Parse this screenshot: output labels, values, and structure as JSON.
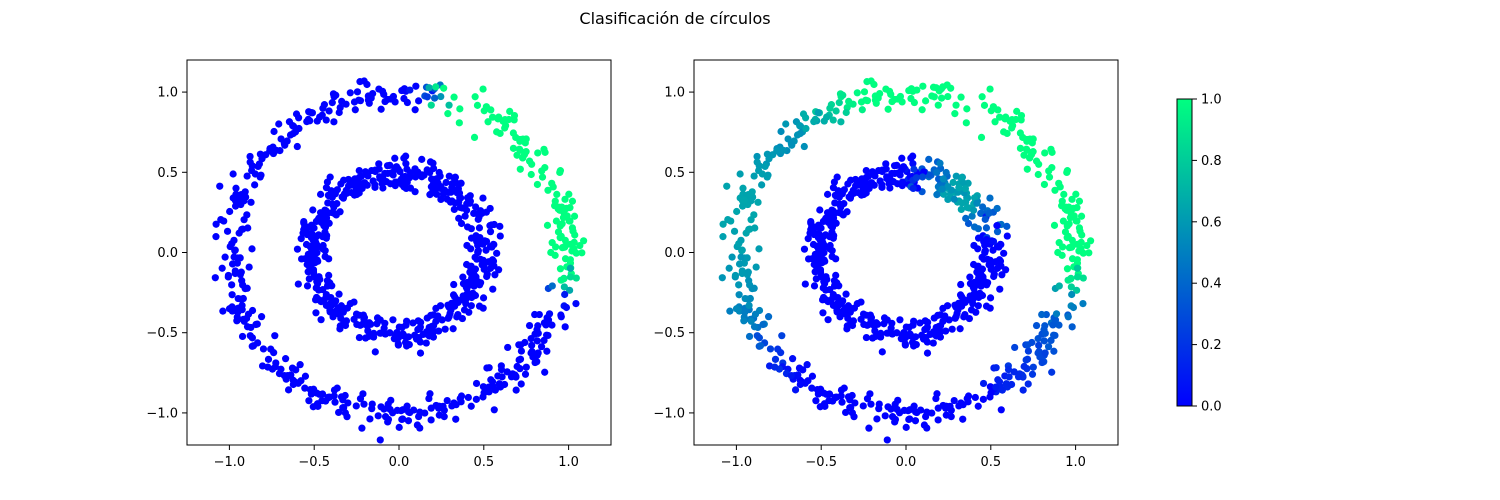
{
  "title": "Clasificación de círculos",
  "chart_data": [
    {
      "type": "scatter",
      "title": "",
      "xlabel": "",
      "ylabel": "",
      "xlim": [
        -1.25,
        1.25
      ],
      "ylim": [
        -1.2,
        1.2
      ],
      "xticks": [
        -1.0,
        -0.5,
        0.0,
        0.5,
        1.0
      ],
      "yticks": [
        -1.0,
        -0.5,
        0.0,
        0.5,
        1.0
      ],
      "xtick_labels": [
        "−1.0",
        "−0.5",
        "0.0",
        "0.5",
        "1.0"
      ],
      "ytick_labels": [
        "−1.0",
        "−0.5",
        "0.0",
        "0.5",
        "1.0"
      ],
      "grid": false,
      "colormap": "winter",
      "series": [
        {
          "name": "",
          "description_ring": "outer",
          "radius": 1.0,
          "noise": 0.05,
          "n_points": 500,
          "value_rule": "approx 1 for angles 0–75 degrees (upper-right arc), 0 elsewhere"
        },
        {
          "name": "",
          "description_ring": "inner",
          "radius": 0.5,
          "noise": 0.05,
          "n_points": 500,
          "value_rule": "0"
        }
      ]
    },
    {
      "type": "scatter",
      "title": "",
      "xlabel": "",
      "ylabel": "",
      "xlim": [
        -1.25,
        1.25
      ],
      "ylim": [
        -1.2,
        1.2
      ],
      "xticks": [
        -1.0,
        -0.5,
        0.0,
        0.5,
        1.0
      ],
      "yticks": [
        -1.0,
        -0.5,
        0.0,
        0.5,
        1.0
      ],
      "xtick_labels": [
        "−1.0",
        "−0.5",
        "0.0",
        "0.5",
        "1.0"
      ],
      "ytick_labels": [
        "−1.0",
        "−0.5",
        "0.0",
        "0.5",
        "1.0"
      ],
      "grid": false,
      "colormap": "winter",
      "series": [
        {
          "name": "",
          "description_ring": "outer",
          "radius": 1.0,
          "noise": 0.05,
          "n_points": 500,
          "value_rule": "approx 1 on right side and top, fading to ~0.6 on left side, ~0.3 lower-right, 0 on bottom"
        },
        {
          "name": "",
          "description_ring": "inner",
          "radius": 0.5,
          "noise": 0.05,
          "n_points": 500,
          "value_rule": "approx 0.6 at upper-right (angles 20–70 degrees), 0 elsewhere"
        }
      ]
    }
  ],
  "colorbar": {
    "vmin": 0.0,
    "vmax": 1.0,
    "ticks": [
      0.0,
      0.2,
      0.4,
      0.6,
      0.8,
      1.0
    ],
    "tick_labels": [
      "0.0",
      "0.2",
      "0.4",
      "0.6",
      "0.8",
      "1.0"
    ],
    "color_low": "#0000ff",
    "color_high": "#00ff80"
  }
}
